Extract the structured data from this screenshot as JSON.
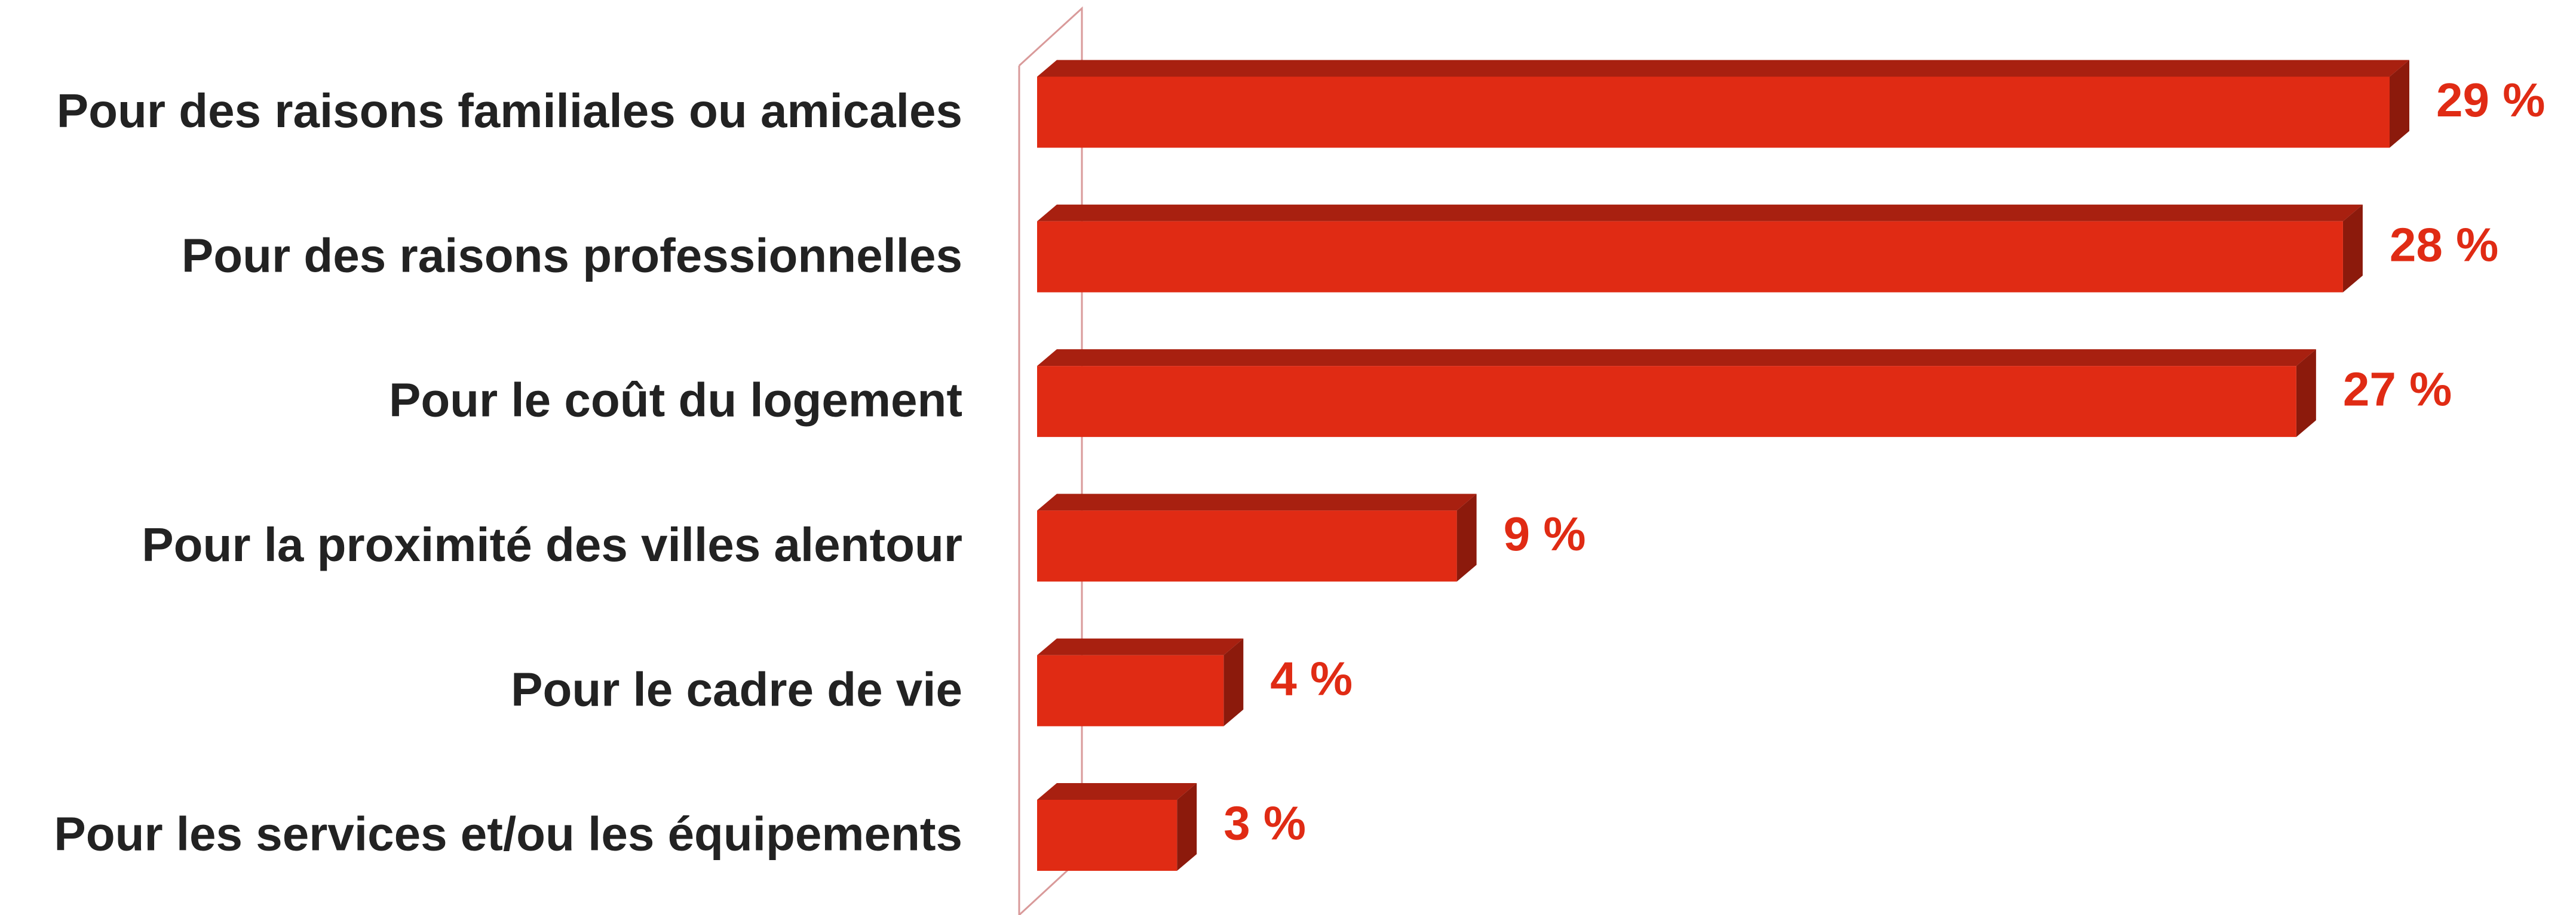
{
  "chart_data": {
    "type": "bar",
    "orientation": "horizontal",
    "color": "#e02b14",
    "categories": [
      "Pour des raisons familiales ou amicales",
      "Pour des raisons professionnelles",
      "Pour le coût du logement",
      "Pour la proximité des villes alentour",
      "Pour le cadre de vie",
      "Pour les services et/ou les équipements"
    ],
    "values": [
      29,
      28,
      27,
      9,
      4,
      3
    ],
    "value_labels": [
      "29 %",
      "28 %",
      "27 %",
      "9 %",
      "4 %",
      "3 %"
    ]
  }
}
